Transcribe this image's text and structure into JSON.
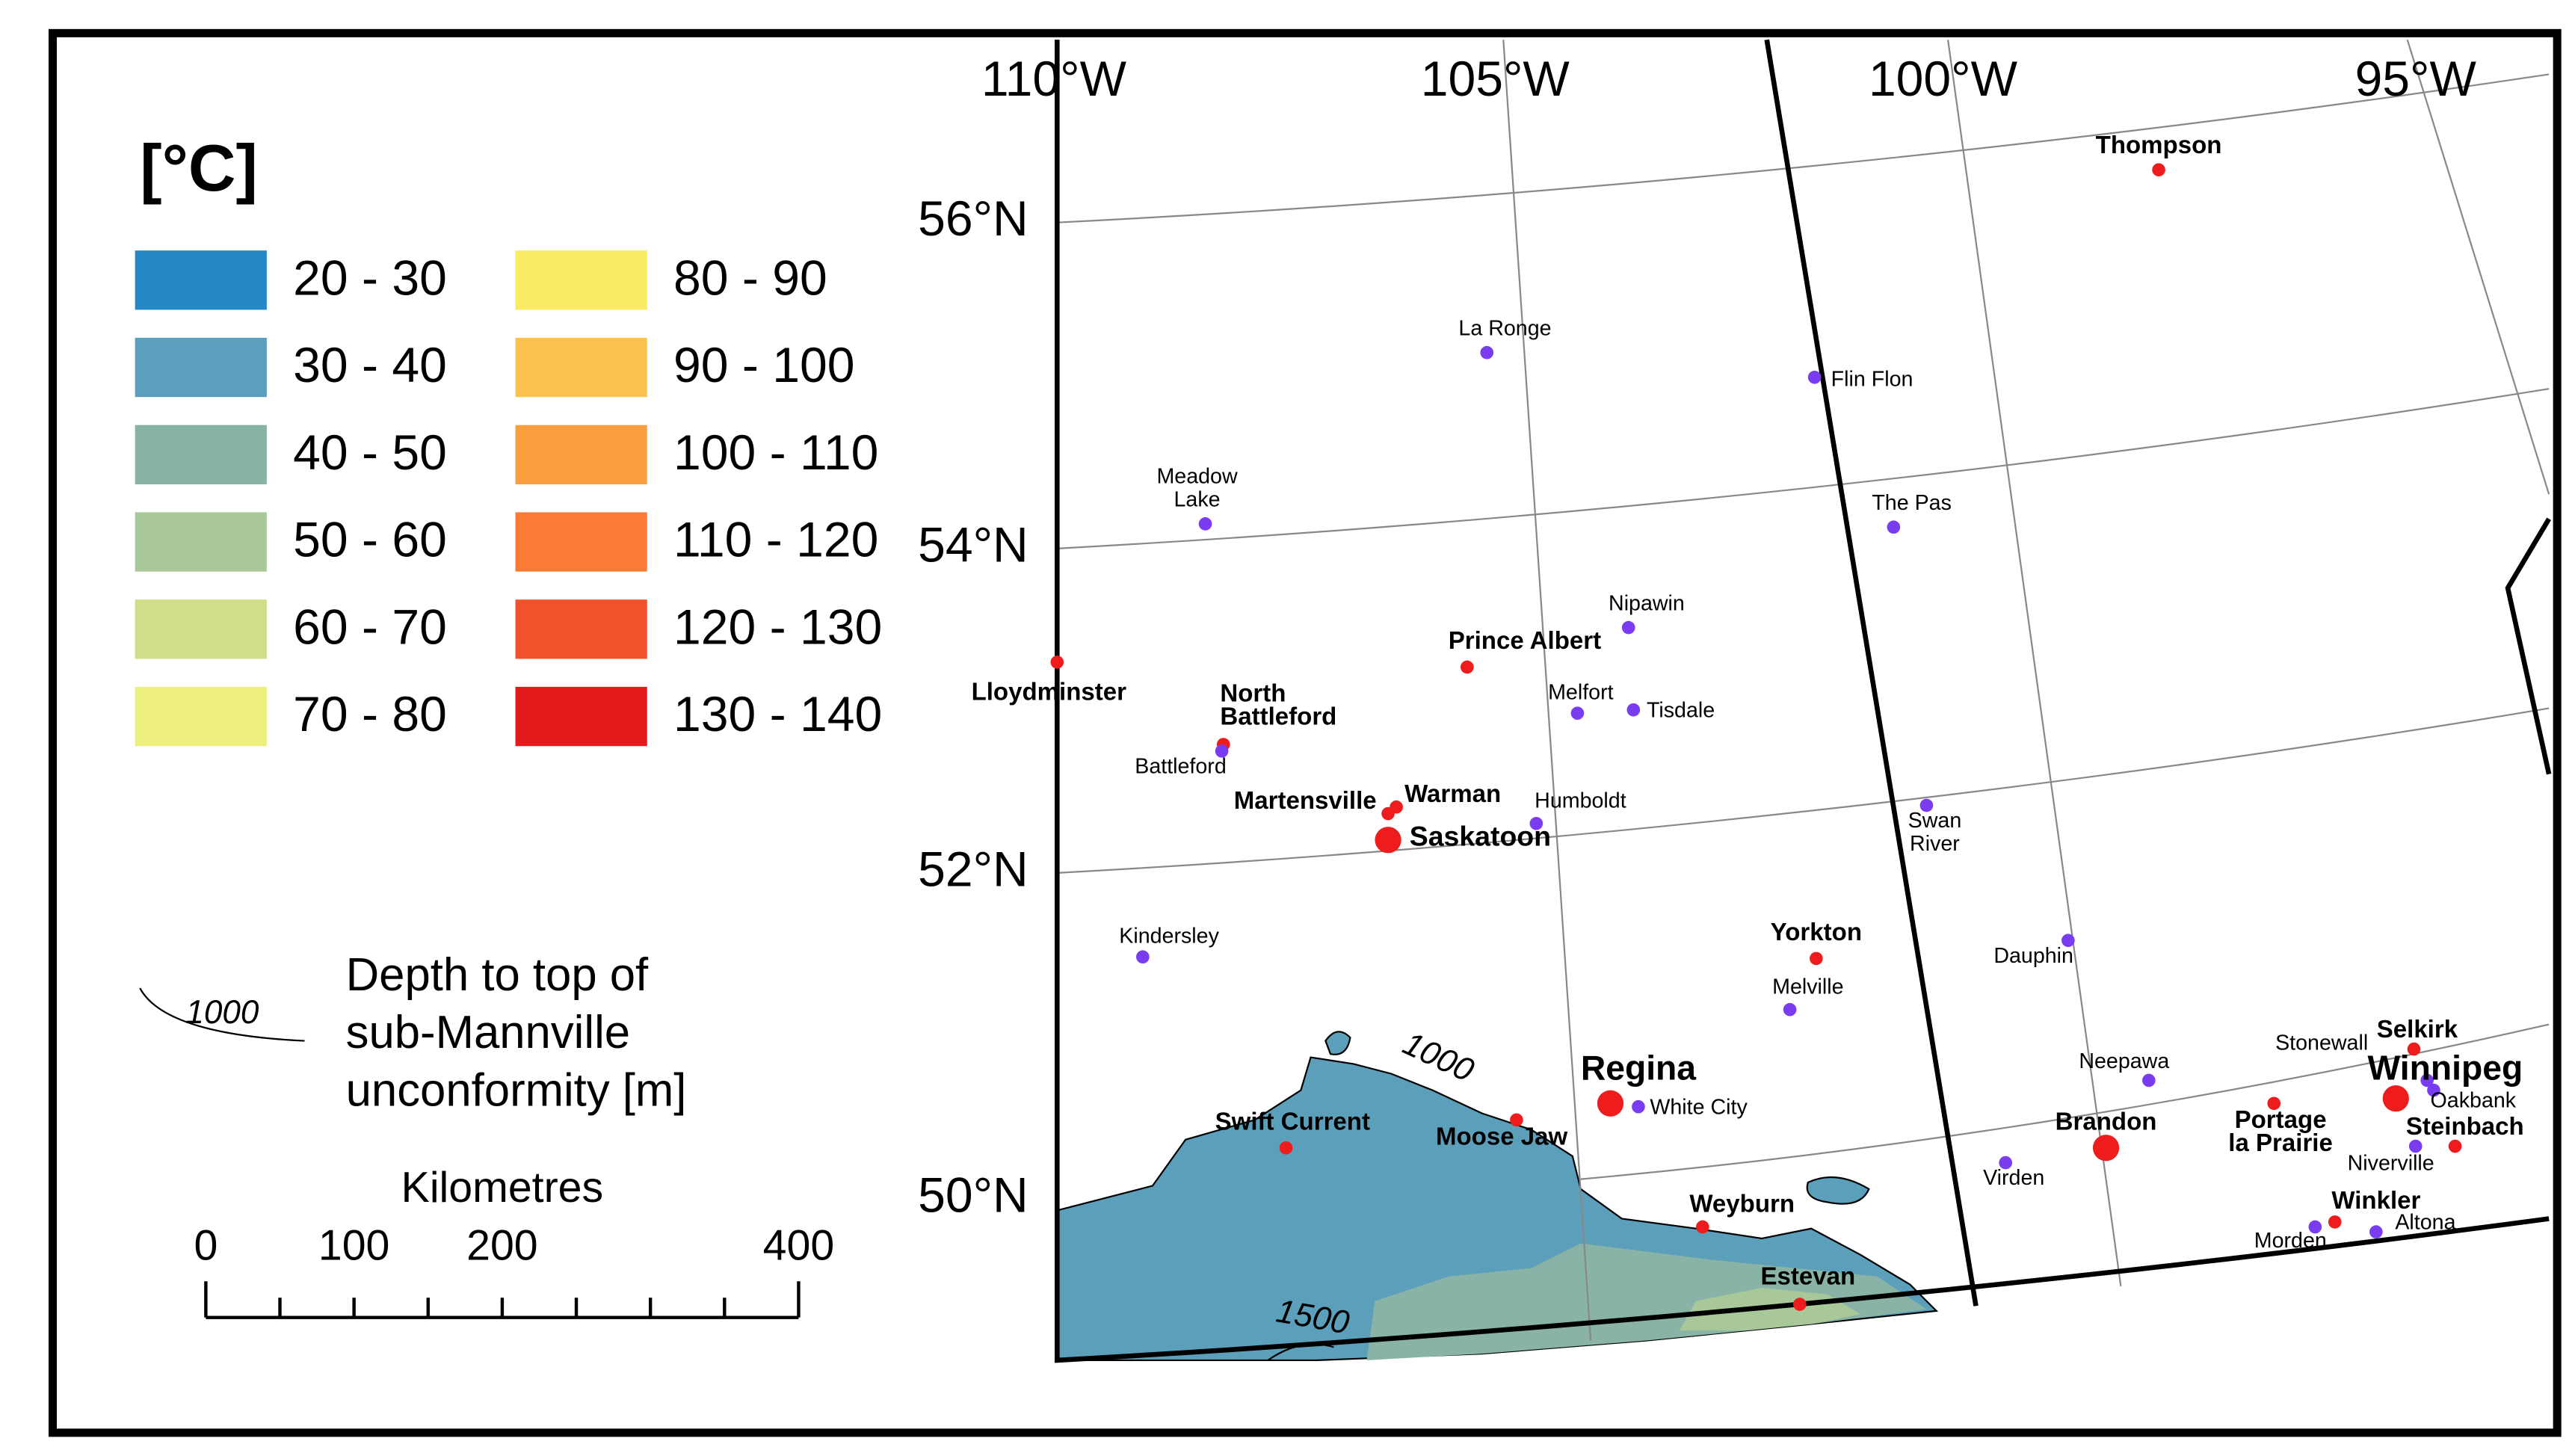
{
  "legend": {
    "title": "[°C]",
    "items": [
      {
        "label": "20 - 30",
        "color": "#2388c5"
      },
      {
        "label": "30 - 40",
        "color": "#5a9fbd"
      },
      {
        "label": "40 - 50",
        "color": "#87b3a6"
      },
      {
        "label": "50 - 60",
        "color": "#a9c89a"
      },
      {
        "label": "60 - 70",
        "color": "#d0dd89"
      },
      {
        "label": "70 - 80",
        "color": "#ecef7b"
      },
      {
        "label": "80 - 90",
        "color": "#fbeb64"
      },
      {
        "label": "90 - 100",
        "color": "#fcc44e"
      },
      {
        "label": "100 - 110",
        "color": "#fb9e3f"
      },
      {
        "label": "110 - 120",
        "color": "#f97b35"
      },
      {
        "label": "120 - 130",
        "color": "#f0522a"
      },
      {
        "label": "130 - 140",
        "color": "#e3191c"
      }
    ]
  },
  "depth_legend": {
    "sample": "1000",
    "text": [
      "Depth to top of",
      "sub-Mannville",
      "unconformity [m]"
    ]
  },
  "scale_bar": {
    "title": "Kilometres",
    "labels": [
      "0",
      "100",
      "200",
      "400"
    ]
  },
  "graticule": {
    "longitudes": [
      "110°W",
      "105°W",
      "100°W",
      "95°W"
    ],
    "latitudes": [
      "56°N",
      "54°N",
      "52°N",
      "50°N"
    ]
  },
  "contours": [
    "1000",
    "1500"
  ],
  "cities": [
    [
      "Thompson"
    ],
    [
      "La Ronge"
    ],
    [
      "Flin Flon"
    ],
    [
      "Meadow",
      "Lake"
    ],
    [
      "The Pas"
    ],
    [
      "Nipawin"
    ],
    [
      "Prince Albert"
    ],
    [
      "Lloydminster"
    ],
    [
      "North",
      "Battleford"
    ],
    [
      "Melfort"
    ],
    [
      "Tisdale"
    ],
    [
      "Battleford"
    ],
    [
      "Martensville"
    ],
    [
      "Warman"
    ],
    [
      "Humboldt"
    ],
    [
      "Saskatoon"
    ],
    [
      "Swan",
      "River"
    ],
    [
      "Kindersley"
    ],
    [
      "Yorkton"
    ],
    [
      "Dauphin"
    ],
    [
      "Melville"
    ],
    [
      "Regina"
    ],
    [
      "White City"
    ],
    [
      "Swift Current"
    ],
    [
      "Moose Jaw"
    ],
    [
      "Neepawa"
    ],
    [
      "Stonewall"
    ],
    [
      "Selkirk"
    ],
    [
      "Winnipeg"
    ],
    [
      "Oakbank"
    ],
    [
      "Portage",
      "la Prairie"
    ],
    [
      "Brandon"
    ],
    [
      "Steinbach"
    ],
    [
      "Virden"
    ],
    [
      "Niverville"
    ],
    [
      "Weyburn"
    ],
    [
      "Winkler"
    ],
    [
      "Altona"
    ],
    [
      "Morden"
    ],
    [
      "Estevan"
    ]
  ]
}
